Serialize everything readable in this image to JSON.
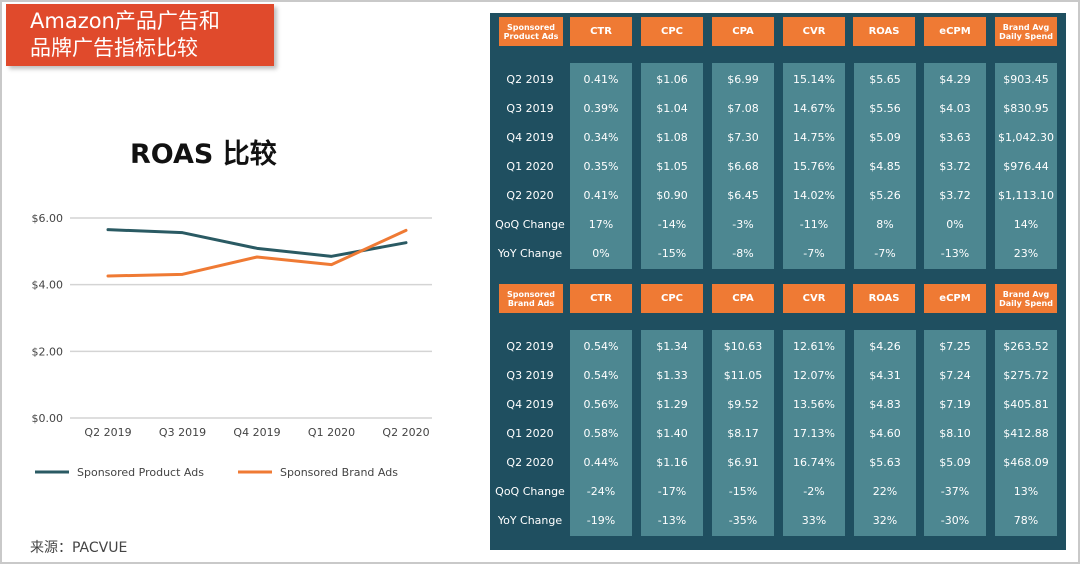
{
  "banner": {
    "line1": "Amazon产品广告和",
    "line2": "品牌广告指标比较"
  },
  "chart_title": "ROAS 比较",
  "source": "来源：PACVUE",
  "colors": {
    "product": "#2a5a63",
    "brand": "#ef7a34",
    "panel": "#1f4f60",
    "header": "#ef7a34",
    "cell": "#4d8791"
  },
  "chart_data": {
    "type": "line",
    "title": "ROAS 比较",
    "categories": [
      "Q2 2019",
      "Q3 2019",
      "Q4 2019",
      "Q1 2020",
      "Q2 2020"
    ],
    "series": [
      {
        "name": "Sponsored Product Ads",
        "values": [
          5.65,
          5.56,
          5.09,
          4.85,
          5.26
        ],
        "color": "#2a5a63"
      },
      {
        "name": "Sponsored Brand Ads",
        "values": [
          4.26,
          4.31,
          4.83,
          4.6,
          5.63
        ],
        "color": "#ef7a34"
      }
    ],
    "yticks": [
      "$0.00",
      "$2.00",
      "$4.00",
      "$6.00"
    ],
    "ylim": [
      0,
      6.0
    ],
    "grid": true,
    "legend": "bottom"
  },
  "product_table": {
    "label": "Sponsored Product Ads",
    "headers": [
      "CTR",
      "CPC",
      "CPA",
      "CVR",
      "ROAS",
      "eCPM",
      "Brand Avg Daily Spend"
    ],
    "rows": [
      {
        "label": "Q2 2019",
        "cells": [
          "0.41%",
          "$1.06",
          "$6.99",
          "15.14%",
          "$5.65",
          "$4.29",
          "$903.45"
        ]
      },
      {
        "label": "Q3 2019",
        "cells": [
          "0.39%",
          "$1.04",
          "$7.08",
          "14.67%",
          "$5.56",
          "$4.03",
          "$830.95"
        ]
      },
      {
        "label": "Q4 2019",
        "cells": [
          "0.34%",
          "$1.08",
          "$7.30",
          "14.75%",
          "$5.09",
          "$3.63",
          "$1,042.30"
        ]
      },
      {
        "label": "Q1 2020",
        "cells": [
          "0.35%",
          "$1.05",
          "$6.68",
          "15.76%",
          "$4.85",
          "$3.72",
          "$976.44"
        ]
      },
      {
        "label": "Q2 2020",
        "cells": [
          "0.41%",
          "$0.90",
          "$6.45",
          "14.02%",
          "$5.26",
          "$3.72",
          "$1,113.10"
        ]
      },
      {
        "label": "QoQ Change",
        "cells": [
          "17%",
          "-14%",
          "-3%",
          "-11%",
          "8%",
          "0%",
          "14%"
        ]
      },
      {
        "label": "YoY Change",
        "cells": [
          "0%",
          "-15%",
          "-8%",
          "-7%",
          "-7%",
          "-13%",
          "23%"
        ]
      }
    ]
  },
  "brand_table": {
    "label": "Sponsored Brand Ads",
    "headers": [
      "CTR",
      "CPC",
      "CPA",
      "CVR",
      "ROAS",
      "eCPM",
      "Brand Avg Daily Spend"
    ],
    "rows": [
      {
        "label": "Q2 2019",
        "cells": [
          "0.54%",
          "$1.34",
          "$10.63",
          "12.61%",
          "$4.26",
          "$7.25",
          "$263.52"
        ]
      },
      {
        "label": "Q3 2019",
        "cells": [
          "0.54%",
          "$1.33",
          "$11.05",
          "12.07%",
          "$4.31",
          "$7.24",
          "$275.72"
        ]
      },
      {
        "label": "Q4 2019",
        "cells": [
          "0.56%",
          "$1.29",
          "$9.52",
          "13.56%",
          "$4.83",
          "$7.19",
          "$405.81"
        ]
      },
      {
        "label": "Q1 2020",
        "cells": [
          "0.58%",
          "$1.40",
          "$8.17",
          "17.13%",
          "$4.60",
          "$8.10",
          "$412.88"
        ]
      },
      {
        "label": "Q2 2020",
        "cells": [
          "0.44%",
          "$1.16",
          "$6.91",
          "16.74%",
          "$5.63",
          "$5.09",
          "$468.09"
        ]
      },
      {
        "label": "QoQ Change",
        "cells": [
          "-24%",
          "-17%",
          "-15%",
          "-2%",
          "22%",
          "-37%",
          "13%"
        ]
      },
      {
        "label": "YoY Change",
        "cells": [
          "-19%",
          "-13%",
          "-35%",
          "33%",
          "32%",
          "-30%",
          "78%"
        ]
      }
    ]
  }
}
